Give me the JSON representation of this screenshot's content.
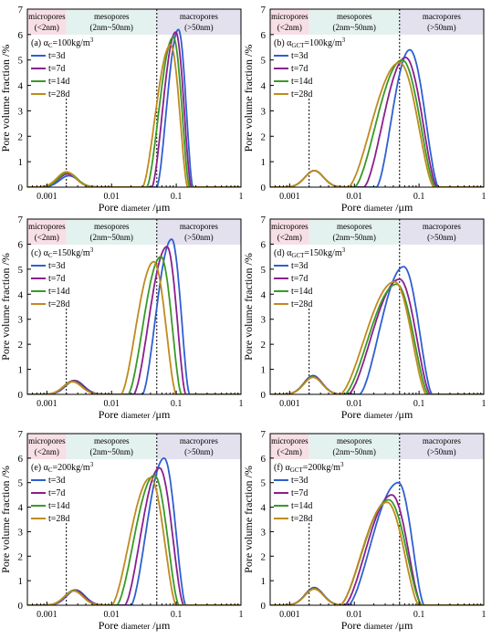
{
  "region_labels": {
    "micro": [
      "micropores",
      "(<2nm)"
    ],
    "meso": [
      "mesopores",
      "(2nm~50nm)"
    ],
    "macro": [
      "macropores",
      "(>50nm)"
    ]
  },
  "colors": {
    "micro_band": "#f7dfe6",
    "meso_band": "#e3f1ef",
    "macro_band": "#e4e1ef",
    "series": [
      "#2f5fd0",
      "#8a1f8f",
      "#3a9a25",
      "#c08a1e"
    ]
  },
  "x_tick_labels": [
    "0.001",
    "0.01",
    "0.1",
    "1"
  ],
  "y_tick_labels": [
    "0",
    "1",
    "2",
    "3",
    "4",
    "5",
    "6",
    "7"
  ],
  "ylabel": "Pore volume fraction /%",
  "xlabel": {
    "main": "Pore ",
    "small": "diameter",
    "unit": " /μm"
  },
  "chart_data": [
    {
      "type": "line",
      "panel": "(a)",
      "title_prefix": "(a) α",
      "title_sub": "C",
      "title_suffix": "=100kg/m",
      "title_sup": "3",
      "xscale": "log",
      "xlim": [
        0.0005,
        1
      ],
      "ylim": [
        0,
        7
      ],
      "region_bounds": [
        0.002,
        0.05
      ],
      "series": [
        {
          "name": "t=3d",
          "micro_peak": [
            0.0022,
            0.45
          ],
          "macro_peak": [
            0.108,
            6.2
          ],
          "macro_range": [
            0.05,
            0.18
          ]
        },
        {
          "name": "t=7d",
          "micro_peak": [
            0.0021,
            0.52
          ],
          "macro_peak": [
            0.098,
            6.1
          ],
          "macro_range": [
            0.042,
            0.17
          ]
        },
        {
          "name": "t=14d",
          "micro_peak": [
            0.0021,
            0.57
          ],
          "macro_peak": [
            0.09,
            5.9
          ],
          "macro_range": [
            0.035,
            0.16
          ]
        },
        {
          "name": "t=28d",
          "micro_peak": [
            0.002,
            0.6
          ],
          "macro_peak": [
            0.082,
            5.6
          ],
          "macro_range": [
            0.03,
            0.15
          ]
        }
      ]
    },
    {
      "type": "line",
      "panel": "(b)",
      "title_prefix": "(b) α",
      "title_sub": "GCT",
      "title_suffix": "=100kg/m",
      "title_sup": "3",
      "xscale": "log",
      "xlim": [
        0.0005,
        1
      ],
      "ylim": [
        0,
        7
      ],
      "region_bounds": [
        0.002,
        0.05
      ],
      "series": [
        {
          "name": "t=3d",
          "micro_peak": [
            0.0024,
            0.65
          ],
          "macro_peak": [
            0.072,
            5.4
          ],
          "macro_range": [
            0.022,
            0.2
          ]
        },
        {
          "name": "t=7d",
          "micro_peak": [
            0.0024,
            0.65
          ],
          "macro_peak": [
            0.062,
            5.1
          ],
          "macro_range": [
            0.014,
            0.19
          ]
        },
        {
          "name": "t=14d",
          "micro_peak": [
            0.0024,
            0.65
          ],
          "macro_peak": [
            0.055,
            5.0
          ],
          "macro_range": [
            0.01,
            0.18
          ]
        },
        {
          "name": "t=28d",
          "micro_peak": [
            0.0024,
            0.65
          ],
          "macro_peak": [
            0.05,
            4.9
          ],
          "macro_range": [
            0.008,
            0.17
          ]
        }
      ]
    },
    {
      "type": "line",
      "panel": "(c)",
      "title_prefix": "(c) α",
      "title_sub": "C",
      "title_suffix": "=150kg/m",
      "title_sup": "3",
      "xscale": "log",
      "xlim": [
        0.0005,
        1
      ],
      "ylim": [
        0,
        7
      ],
      "region_bounds": [
        0.002,
        0.05
      ],
      "series": [
        {
          "name": "t=3d",
          "micro_peak": [
            0.0027,
            0.55
          ],
          "macro_peak": [
            0.085,
            6.2
          ],
          "macro_range": [
            0.03,
            0.16
          ]
        },
        {
          "name": "t=7d",
          "micro_peak": [
            0.0026,
            0.55
          ],
          "macro_peak": [
            0.072,
            5.9
          ],
          "macro_range": [
            0.022,
            0.14
          ]
        },
        {
          "name": "t=14d",
          "micro_peak": [
            0.0025,
            0.52
          ],
          "macro_peak": [
            0.058,
            5.5
          ],
          "macro_range": [
            0.018,
            0.12
          ]
        },
        {
          "name": "t=28d",
          "micro_peak": [
            0.0025,
            0.5
          ],
          "macro_peak": [
            0.045,
            5.3
          ],
          "macro_range": [
            0.014,
            0.1
          ]
        }
      ]
    },
    {
      "type": "line",
      "panel": "(d)",
      "title_prefix": "(d) α",
      "title_sub": "GCT",
      "title_suffix": "=150kg/m",
      "title_sup": "3",
      "xscale": "log",
      "xlim": [
        0.0005,
        1
      ],
      "ylim": [
        0,
        7
      ],
      "region_bounds": [
        0.002,
        0.05
      ],
      "series": [
        {
          "name": "t=3d",
          "micro_peak": [
            0.0023,
            0.75
          ],
          "macro_peak": [
            0.058,
            5.1
          ],
          "macro_range": [
            0.012,
            0.16
          ]
        },
        {
          "name": "t=7d",
          "micro_peak": [
            0.0023,
            0.72
          ],
          "macro_peak": [
            0.05,
            4.6
          ],
          "macro_range": [
            0.008,
            0.15
          ]
        },
        {
          "name": "t=14d",
          "micro_peak": [
            0.0023,
            0.7
          ],
          "macro_peak": [
            0.045,
            4.4
          ],
          "macro_range": [
            0.007,
            0.14
          ]
        },
        {
          "name": "t=28d",
          "micro_peak": [
            0.0023,
            0.68
          ],
          "macro_peak": [
            0.042,
            4.5
          ],
          "macro_range": [
            0.006,
            0.13
          ]
        }
      ]
    },
    {
      "type": "line",
      "panel": "(e)",
      "title_prefix": "(e) α",
      "title_sub": "C",
      "title_suffix": "=200kg/m",
      "title_sup": "3",
      "xscale": "log",
      "xlim": [
        0.0005,
        1
      ],
      "ylim": [
        0,
        7
      ],
      "region_bounds": [
        0.002,
        0.05
      ],
      "series": [
        {
          "name": "t=3d",
          "micro_peak": [
            0.0028,
            0.62
          ],
          "macro_peak": [
            0.065,
            6.0
          ],
          "macro_range": [
            0.02,
            0.14
          ]
        },
        {
          "name": "t=7d",
          "micro_peak": [
            0.0027,
            0.62
          ],
          "macro_peak": [
            0.055,
            5.6
          ],
          "macro_range": [
            0.016,
            0.13
          ]
        },
        {
          "name": "t=14d",
          "micro_peak": [
            0.0026,
            0.6
          ],
          "macro_peak": [
            0.046,
            5.3
          ],
          "macro_range": [
            0.012,
            0.11
          ]
        },
        {
          "name": "t=28d",
          "micro_peak": [
            0.0026,
            0.58
          ],
          "macro_peak": [
            0.04,
            5.2
          ],
          "macro_range": [
            0.01,
            0.1
          ]
        }
      ]
    },
    {
      "type": "line",
      "panel": "(f)",
      "title_prefix": "(f) α",
      "title_sub": "GCT",
      "title_suffix": "=200kg/m",
      "title_sup": "3",
      "xscale": "log",
      "xlim": [
        0.0005,
        1
      ],
      "ylim": [
        0,
        7
      ],
      "region_bounds": [
        0.002,
        0.05
      ],
      "series": [
        {
          "name": "t=3d",
          "micro_peak": [
            0.0024,
            0.72
          ],
          "macro_peak": [
            0.048,
            5.0
          ],
          "macro_range": [
            0.008,
            0.12
          ]
        },
        {
          "name": "t=7d",
          "micro_peak": [
            0.0024,
            0.7
          ],
          "macro_peak": [
            0.038,
            4.5
          ],
          "macro_range": [
            0.007,
            0.11
          ]
        },
        {
          "name": "t=14d",
          "micro_peak": [
            0.0024,
            0.68
          ],
          "macro_peak": [
            0.034,
            4.3
          ],
          "macro_range": [
            0.006,
            0.11
          ]
        },
        {
          "name": "t=28d",
          "micro_peak": [
            0.0024,
            0.66
          ],
          "macro_peak": [
            0.032,
            4.2
          ],
          "macro_range": [
            0.006,
            0.1
          ]
        }
      ]
    }
  ]
}
